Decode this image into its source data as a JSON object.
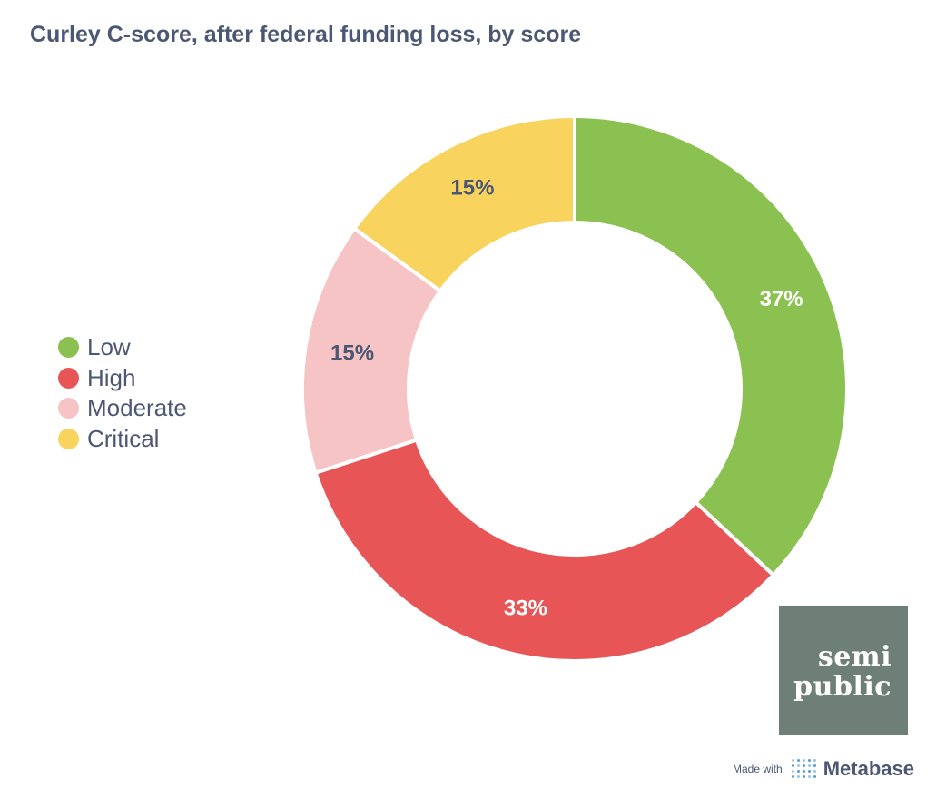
{
  "chart_data": {
    "type": "pie",
    "title": "Curley C-score, after federal funding loss, by score",
    "donut": true,
    "legend_position": "left",
    "slices": [
      {
        "name": "Low",
        "value": 37,
        "label": "37%",
        "color": "#8bc150",
        "label_color": "#ffffff"
      },
      {
        "name": "High",
        "value": 33,
        "label": "33%",
        "color": "#e85556",
        "label_color": "#ffffff"
      },
      {
        "name": "Moderate",
        "value": 15,
        "label": "15%",
        "color": "#f6c4c4",
        "label_color": "#4c5773"
      },
      {
        "name": "Critical",
        "value": 15,
        "label": "15%",
        "color": "#f8d45f",
        "label_color": "#4c5773"
      }
    ]
  },
  "logo": {
    "line1": "semi",
    "line2": "public"
  },
  "footer": {
    "made_with": "Made with",
    "brand": "Metabase"
  }
}
